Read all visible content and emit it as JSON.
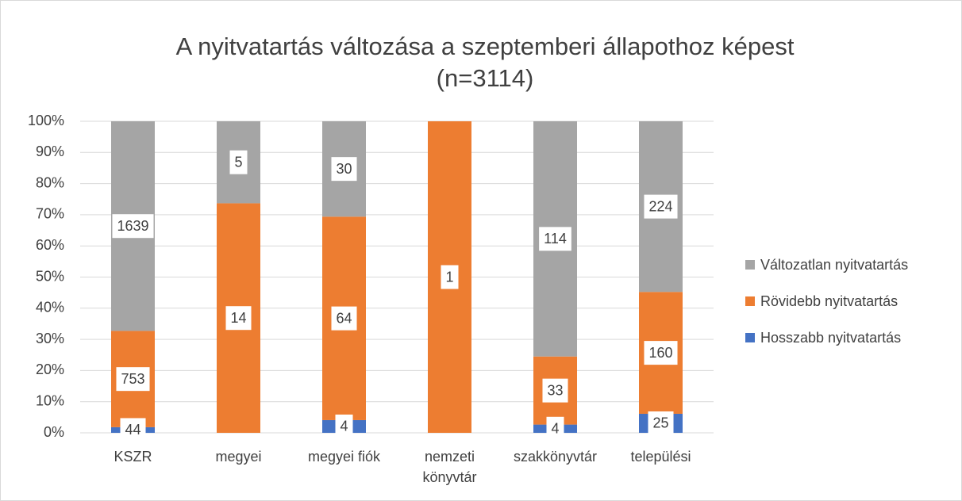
{
  "chart_data": {
    "type": "bar",
    "stacking": "percent",
    "title": "A nyitvatartás változása a szeptemberi állapothoz képest (n=3114)",
    "categories": [
      "KSZR",
      "megyei",
      "megyei fiók",
      "nemzeti könyvtár",
      "szakkönyvtár",
      "települési"
    ],
    "series": [
      {
        "name": "Hosszabb nyitvatartás",
        "color": "#4472c4",
        "values": [
          44,
          0,
          4,
          0,
          4,
          25
        ]
      },
      {
        "name": "Rövidebb nyitvatartás",
        "color": "#ed7d31",
        "values": [
          753,
          14,
          64,
          1,
          33,
          160
        ]
      },
      {
        "name": "Változatlan nyitvatartás",
        "color": "#a5a5a5",
        "values": [
          1639,
          5,
          30,
          0,
          114,
          224
        ]
      }
    ],
    "ylim": [
      0,
      100
    ],
    "yticks": [
      {
        "value": 0,
        "label": "0%"
      },
      {
        "value": 10,
        "label": "10%"
      },
      {
        "value": 20,
        "label": "20%"
      },
      {
        "value": 30,
        "label": "30%"
      },
      {
        "value": 40,
        "label": "40%"
      },
      {
        "value": 50,
        "label": "50%"
      },
      {
        "value": 60,
        "label": "60%"
      },
      {
        "value": 70,
        "label": "70%"
      },
      {
        "value": 80,
        "label": "80%"
      },
      {
        "value": 90,
        "label": "90%"
      },
      {
        "value": 100,
        "label": "100%"
      }
    ],
    "grid": true,
    "legend": "right"
  }
}
